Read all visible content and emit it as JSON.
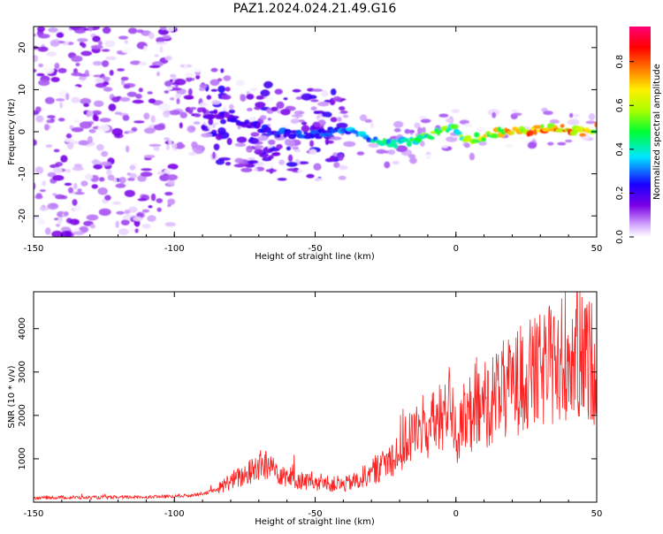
{
  "title": "PAZ1.2024.024.21.49.G16",
  "colorbar": {
    "label": "Normalized spectral amplitude",
    "ticks": [
      "0.0",
      "0.2",
      "0.4",
      "0.6",
      "0.8"
    ],
    "tick_values": [
      0.0,
      0.2,
      0.4,
      0.6,
      0.8
    ],
    "range": [
      0.0,
      0.96
    ]
  },
  "chart_data": [
    {
      "type": "heatmap",
      "xlabel": "Height of straight line (km)",
      "ylabel": "Frequency (Hz)",
      "xlim": [
        -150,
        50
      ],
      "ylim": [
        -25,
        25
      ],
      "xticks": [
        "-150",
        "-100",
        "-50",
        "0",
        "50"
      ],
      "xtick_values": [
        -150,
        -100,
        -50,
        0,
        50
      ],
      "yticks": [
        "-20",
        "-10",
        "0",
        "10",
        "20"
      ],
      "ytick_values": [
        -20,
        -10,
        0,
        10,
        20
      ],
      "colormap": "white-purple-blue-cyan-green-yellow-red-magenta",
      "signal_track": {
        "x": [
          -95,
          -85,
          -75,
          -65,
          -55,
          -45,
          -35,
          -25,
          -15,
          -5,
          -1,
          2,
          5,
          15,
          25,
          35,
          45,
          50
        ],
        "frequency": [
          5,
          4,
          2,
          0,
          -1,
          0,
          0,
          -3,
          -2,
          0,
          2,
          -2,
          -2,
          0,
          0,
          1,
          0,
          1
        ],
        "amplitude": [
          0.15,
          0.2,
          0.25,
          0.3,
          0.3,
          0.35,
          0.4,
          0.5,
          0.55,
          0.6,
          0.55,
          0.6,
          0.65,
          0.75,
          0.85,
          0.9,
          0.85,
          0.8
        ]
      }
    },
    {
      "type": "line",
      "xlabel": "Height of straight line (km)",
      "ylabel": "SNR (10 * v/v)",
      "xlim": [
        -150,
        50
      ],
      "ylim": [
        0,
        4850
      ],
      "xticks": [
        "-150",
        "-100",
        "-50",
        "0",
        "50"
      ],
      "xtick_values": [
        -150,
        -100,
        -50,
        0,
        50
      ],
      "yticks": [
        "1000",
        "2000",
        "3000",
        "4000"
      ],
      "ytick_values": [
        1000,
        2000,
        3000,
        4000
      ],
      "color": "#ff2020",
      "series": [
        {
          "x": [
            -150,
            -140,
            -130,
            -120,
            -110,
            -100,
            -95,
            -90,
            -85,
            -80,
            -75,
            -70,
            -65,
            -60,
            -55,
            -50,
            -45,
            -40,
            -35,
            -30,
            -25,
            -20,
            -15,
            -10,
            -5,
            -2,
            0,
            5,
            10,
            15,
            20,
            25,
            30,
            35,
            40,
            45,
            50
          ],
          "values": [
            100,
            110,
            105,
            110,
            120,
            130,
            150,
            200,
            280,
            500,
            600,
            850,
            800,
            600,
            500,
            450,
            420,
            400,
            500,
            700,
            900,
            1200,
            1600,
            1700,
            1900,
            2600,
            1500,
            1900,
            2200,
            2500,
            2700,
            2900,
            3000,
            3200,
            3400,
            3300,
            3200
          ]
        }
      ]
    }
  ]
}
